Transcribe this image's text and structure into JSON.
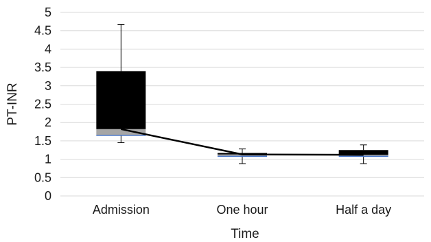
{
  "chart_data": {
    "type": "box",
    "xlabel": "Time",
    "ylabel": "PT-INR",
    "ylim": [
      0,
      5
    ],
    "yticks": [
      "0",
      "0.5",
      "1",
      "1.5",
      "2",
      "2.5",
      "3",
      "3.5",
      "4",
      "4.5",
      "5"
    ],
    "grid": true,
    "categories": [
      "Admission",
      "One hour",
      "Half a day"
    ],
    "boxes": [
      {
        "category": "Admission",
        "min": 1.45,
        "q1": 1.65,
        "median": 1.82,
        "q3": 3.4,
        "max": 4.67
      },
      {
        "category": "One hour",
        "min": 0.88,
        "q1": 1.08,
        "median": 1.13,
        "q3": 1.17,
        "max": 1.28
      },
      {
        "category": "Half a day",
        "min": 0.88,
        "q1": 1.08,
        "median": 1.12,
        "q3": 1.25,
        "max": 1.39
      }
    ],
    "median_line": [
      1.82,
      1.13,
      1.12
    ],
    "colors": {
      "upper_box": "#000000",
      "lower_box": "#a6a6a6",
      "box_base": "#4472c4",
      "grid": "#d9d9d9",
      "line": "#000000"
    }
  }
}
